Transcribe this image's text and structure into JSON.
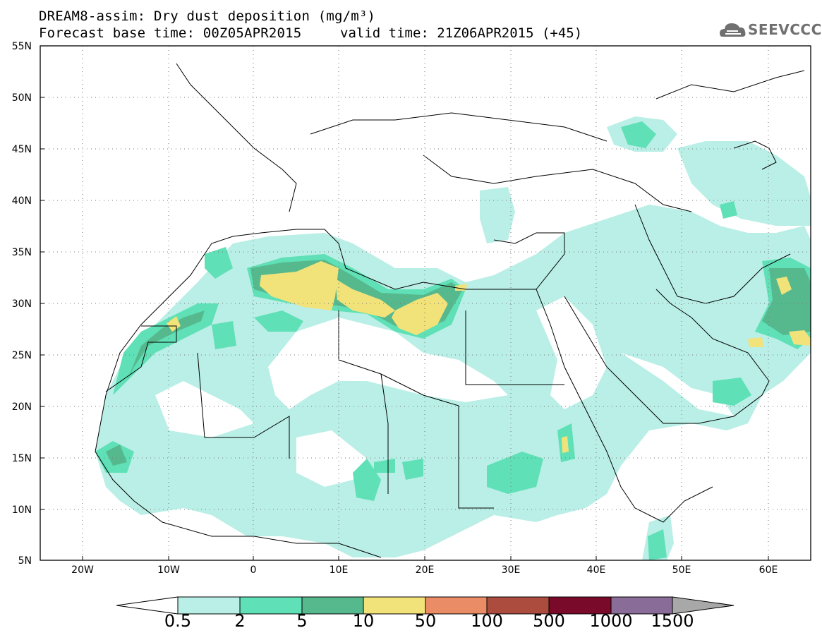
{
  "header": {
    "title_line1": "DREAM8-assim: Dry dust deposition (mg/m³)",
    "base_time": "Forecast base time: 00Z05APR2015",
    "valid_time": "valid time: 21Z06APR2015 (+45)",
    "logo_text": "SEEVCCC"
  },
  "map": {
    "lat_labels": [
      "55N",
      "50N",
      "45N",
      "40N",
      "35N",
      "30N",
      "25N",
      "20N",
      "15N",
      "10N",
      "5N"
    ],
    "lon_labels": [
      "20W",
      "10W",
      "0",
      "10E",
      "20E",
      "30E",
      "40E",
      "50E",
      "60E"
    ],
    "grid": true,
    "grid_style": "dotted"
  },
  "legend": {
    "levels": [
      "0.5",
      "2",
      "5",
      "10",
      "50",
      "100",
      "500",
      "1000",
      "1500"
    ],
    "colors": [
      "#b9efe6",
      "#5fe0b6",
      "#56b98e",
      "#f2e27a",
      "#ea8d66",
      "#ab4c3f",
      "#7a0a2a",
      "#8a6c99",
      "#a8a8a8"
    ]
  }
}
